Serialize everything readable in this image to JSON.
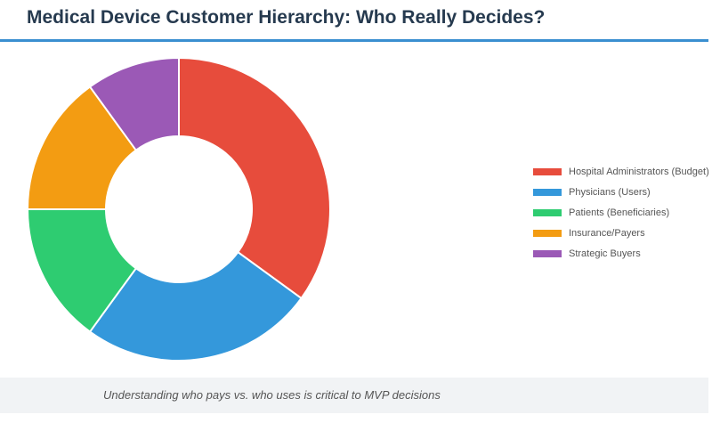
{
  "title": "Medical Device Customer Hierarchy: Who Really Decides?",
  "footer_note": "Understanding who pays vs. who uses is critical to MVP decisions",
  "chart_data": {
    "type": "pie",
    "style": "donut",
    "legend_position": "right",
    "grid": false,
    "series": [
      {
        "categories": [
          "Hospital Administrators (Budget)",
          "Physicians (Users)",
          "Patients (Beneficiaries)",
          "Insurance/Payers",
          "Strategic Buyers"
        ],
        "values": [
          35,
          25,
          15,
          15,
          10
        ],
        "colors": [
          "#e74c3c",
          "#3498db",
          "#2ecc71",
          "#f39c12",
          "#9b59b6"
        ]
      }
    ]
  }
}
